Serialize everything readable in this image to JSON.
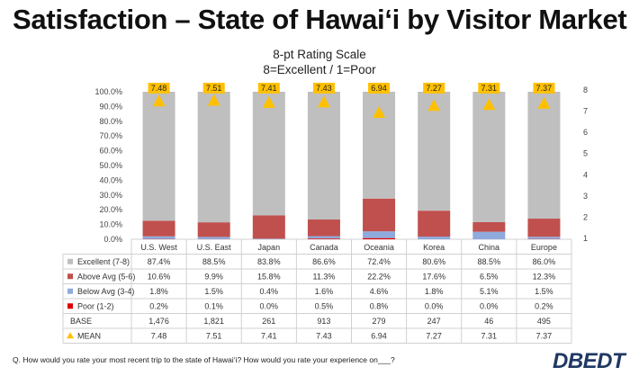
{
  "title": "Satisfaction – State of Hawai‘i by Visitor Market",
  "subtitle_line1": "8-pt Rating Scale",
  "subtitle_line2": "8=Excellent / 1=Poor",
  "footnote": "Q.  How would you rate your most recent trip to the state of Hawai‘i?  How would you rate your experience on___?",
  "logo_text": "DBEDT",
  "colors": {
    "excellent": "#bfbfbf",
    "above_avg": "#c0504d",
    "below_avg": "#8faadc",
    "poor": "#e00000",
    "mean_marker": "#ffc000",
    "logo": "#1f3864"
  },
  "chart_data": {
    "type": "bar",
    "stacked": true,
    "categories": [
      "U.S. West",
      "U.S. East",
      "Japan",
      "Canada",
      "Oceania",
      "Korea",
      "China",
      "Europe"
    ],
    "series": [
      {
        "name": "Excellent (7-8)",
        "values": [
          87.4,
          88.5,
          83.8,
          86.6,
          72.4,
          80.6,
          88.5,
          86.0
        ],
        "labels": [
          "87.4%",
          "88.5%",
          "83.8%",
          "86.6%",
          "72.4%",
          "80.6%",
          "88.5%",
          "86.0%"
        ]
      },
      {
        "name": "Above Avg (5-6)",
        "values": [
          10.6,
          9.9,
          15.8,
          11.3,
          22.2,
          17.6,
          6.5,
          12.3
        ],
        "labels": [
          "10.6%",
          "9.9%",
          "15.8%",
          "11.3%",
          "22.2%",
          "17.6%",
          "6.5%",
          "12.3%"
        ]
      },
      {
        "name": "Below Avg (3-4)",
        "values": [
          1.8,
          1.5,
          0.4,
          1.6,
          4.6,
          1.8,
          5.1,
          1.5
        ],
        "labels": [
          "1.8%",
          "1.5%",
          "0.4%",
          "1.6%",
          "4.6%",
          "1.8%",
          "5.1%",
          "1.5%"
        ]
      },
      {
        "name": "Poor (1-2)",
        "values": [
          0.2,
          0.1,
          0.0,
          0.5,
          0.8,
          0.0,
          0.0,
          0.2
        ],
        "labels": [
          "0.2%",
          "0.1%",
          "0.0%",
          "0.5%",
          "0.8%",
          "0.0%",
          "0.0%",
          "0.2%"
        ]
      }
    ],
    "base": {
      "name": "BASE",
      "values": [
        "1,476",
        "1,821",
        "261",
        "913",
        "279",
        "247",
        "46",
        "495"
      ]
    },
    "mean": {
      "name": "MEAN",
      "values": [
        7.48,
        7.51,
        7.41,
        7.43,
        6.94,
        7.27,
        7.31,
        7.37
      ],
      "labels": [
        "7.48",
        "7.51",
        "7.41",
        "7.43",
        "6.94",
        "7.27",
        "7.31",
        "7.37"
      ]
    },
    "y_left": {
      "ticks": [
        "0.0%",
        "10.0%",
        "20.0%",
        "30.0%",
        "40.0%",
        "50.0%",
        "60.0%",
        "70.0%",
        "80.0%",
        "90.0%",
        "100.0%"
      ],
      "lim": [
        0,
        100
      ]
    },
    "y_right": {
      "ticks": [
        "1",
        "2",
        "3",
        "4",
        "5",
        "6",
        "7",
        "8"
      ],
      "lim": [
        1,
        8
      ]
    },
    "grid": true,
    "legend": "table-below"
  }
}
